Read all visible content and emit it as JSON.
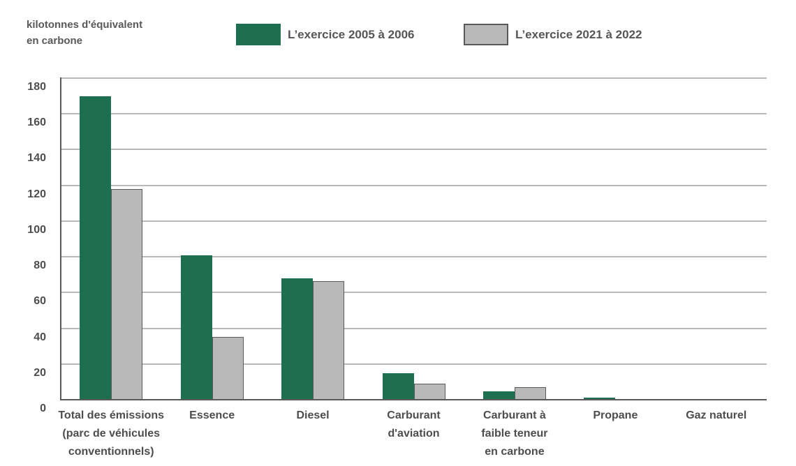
{
  "chart_data": {
    "type": "bar",
    "y_axis_title": "kilotonnes d'équivalent\nen carbone",
    "categories": [
      "Total des émissions (parc de véhicules conventionnels)",
      "Essence",
      "Diesel",
      "Carburant d'aviation",
      "Carburant à faible teneur en carbone",
      "Propane",
      "Gaz naturel"
    ],
    "category_lines": [
      [
        "Total des émissions",
        "(parc de véhicules",
        "conventionnels)"
      ],
      [
        "Essence"
      ],
      [
        "Diesel"
      ],
      [
        "Carburant",
        "d'aviation"
      ],
      [
        "Carburant à",
        "faible teneur",
        "en carbone"
      ],
      [
        "Propane"
      ],
      [
        "Gaz naturel"
      ]
    ],
    "series": [
      {
        "name": "L’exercice 2005 à 2006",
        "color": "#1e6f4f",
        "values": [
          170,
          81,
          68,
          15,
          4.5,
          1,
          0.2
        ]
      },
      {
        "name": "L’exercice 2021 à 2022",
        "color": "#b9b9b9",
        "border_color": "#595959",
        "values": [
          118,
          35,
          66.5,
          9,
          7,
          0.4,
          0.05
        ]
      }
    ],
    "ylim": [
      0,
      180
    ],
    "ytick_step": 20,
    "ytick_labels": [
      "0",
      "20",
      "40",
      "60",
      "80",
      "100",
      "120",
      "140",
      "160",
      "180"
    ],
    "grid": true,
    "gridline_color": "#b9b9b9",
    "axis_color": "#595959",
    "legend_position": "top"
  }
}
